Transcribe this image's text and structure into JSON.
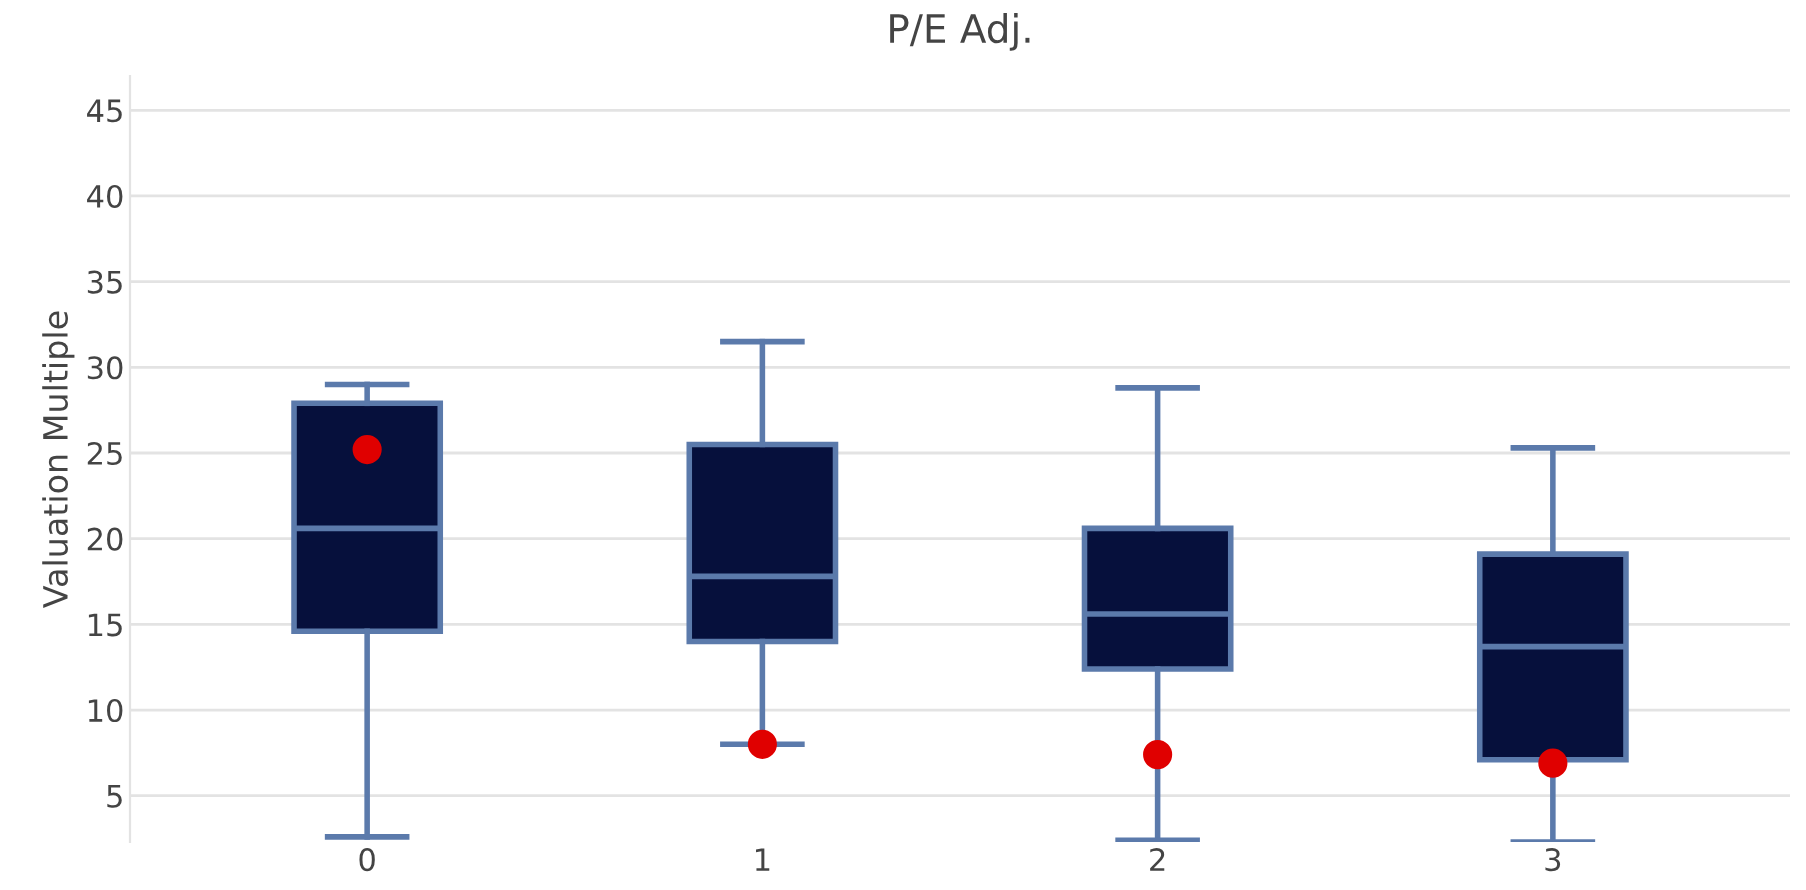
{
  "chart_data": {
    "type": "box",
    "title": "P/E Adj.",
    "ylabel": "Valuation Multiple",
    "categories": [
      "0",
      "1",
      "2",
      "3"
    ],
    "ylim": [
      2.3,
      47
    ],
    "yticks": [
      5,
      10,
      15,
      20,
      25,
      30,
      35,
      40,
      45
    ],
    "grid": "y",
    "series": [
      {
        "color": "#06103c",
        "boxes": [
          {
            "low": 2.6,
            "q1": 14.6,
            "median": 20.6,
            "q3": 27.9,
            "high": 29.0
          },
          {
            "low": 8.0,
            "q1": 14.0,
            "median": 17.8,
            "q3": 25.5,
            "high": 31.5
          },
          {
            "low": 2.4,
            "q1": 12.4,
            "median": 15.6,
            "q3": 20.6,
            "high": 28.8
          },
          {
            "low": 2.3,
            "q1": 7.1,
            "median": 13.7,
            "q3": 19.1,
            "high": 25.3
          }
        ]
      },
      {
        "type": "scatter",
        "color": "#e00000",
        "marker": "circle",
        "x": [
          "0",
          "1",
          "2",
          "3"
        ],
        "values": [
          25.2,
          8.0,
          7.4,
          6.9
        ]
      }
    ]
  }
}
